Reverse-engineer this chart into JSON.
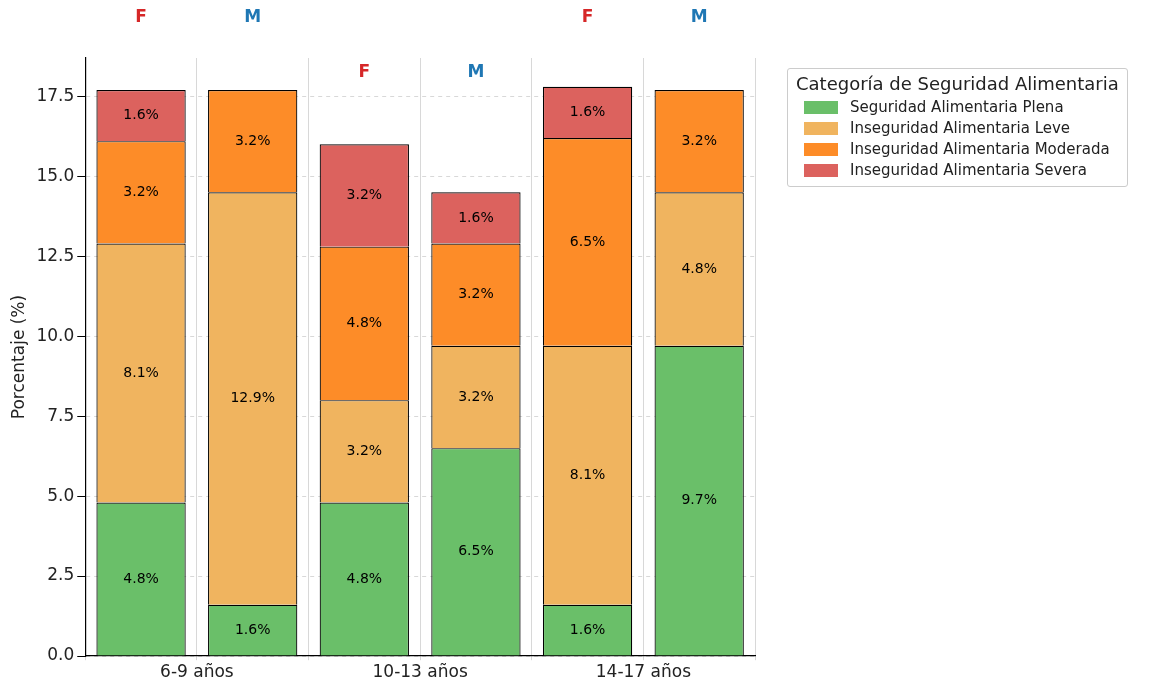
{
  "chart_data": {
    "type": "bar",
    "stacked": true,
    "ylabel": "Porcentaje (%)",
    "legend_title": "Categoría de Seguridad Alimentaria",
    "legend": "top right",
    "grid": true,
    "data_labels": true,
    "categories": [
      "F",
      "M",
      "F",
      "M",
      "F",
      "M"
    ],
    "annotations": [
      "6-9 años",
      "10-13 años",
      "14-17 años"
    ],
    "ylim": [
      0,
      18.7
    ],
    "yticks": [
      {
        "value": 0,
        "label": "0.0"
      },
      {
        "value": 2.5,
        "label": "2.5"
      },
      {
        "value": 5,
        "label": "5.0"
      },
      {
        "value": 7.5,
        "label": "7.5"
      },
      {
        "value": 10,
        "label": "10.0"
      },
      {
        "value": 12.5,
        "label": "12.5"
      },
      {
        "value": 15,
        "label": "15.0"
      },
      {
        "value": 17.5,
        "label": "17.5"
      }
    ],
    "series": [
      {
        "name": "Seguridad Alimentaria Plena",
        "color": "#6abf69",
        "values": [
          4.8,
          1.6,
          4.8,
          6.5,
          1.6,
          9.7
        ],
        "value_labels": [
          "4.8%",
          "1.6%",
          "4.8%",
          "6.5%",
          "1.6%",
          "9.7%"
        ]
      },
      {
        "name": "Inseguridad Alimentaria Leve",
        "color": "#f0b45f",
        "values": [
          8.1,
          12.9,
          3.2,
          3.2,
          8.1,
          4.8
        ],
        "value_labels": [
          "8.1%",
          "12.9%",
          "3.2%",
          "3.2%",
          "8.1%",
          "4.8%"
        ]
      },
      {
        "name": "Inseguridad Alimentaria Moderada",
        "color": "#fd8c28",
        "values": [
          3.2,
          3.2,
          4.8,
          3.2,
          6.5,
          3.2
        ],
        "value_labels": [
          "3.2%",
          "3.2%",
          "4.8%",
          "3.2%",
          "6.5%",
          "3.2%"
        ]
      },
      {
        "name": "Inseguridad Alimentaria Severa",
        "color": "#dc625e",
        "values": [
          1.6,
          null,
          3.2,
          1.6,
          1.6,
          null
        ],
        "value_labels": [
          "1.6%",
          null,
          "3.2%",
          "1.6%",
          "1.6%",
          null
        ]
      }
    ]
  }
}
